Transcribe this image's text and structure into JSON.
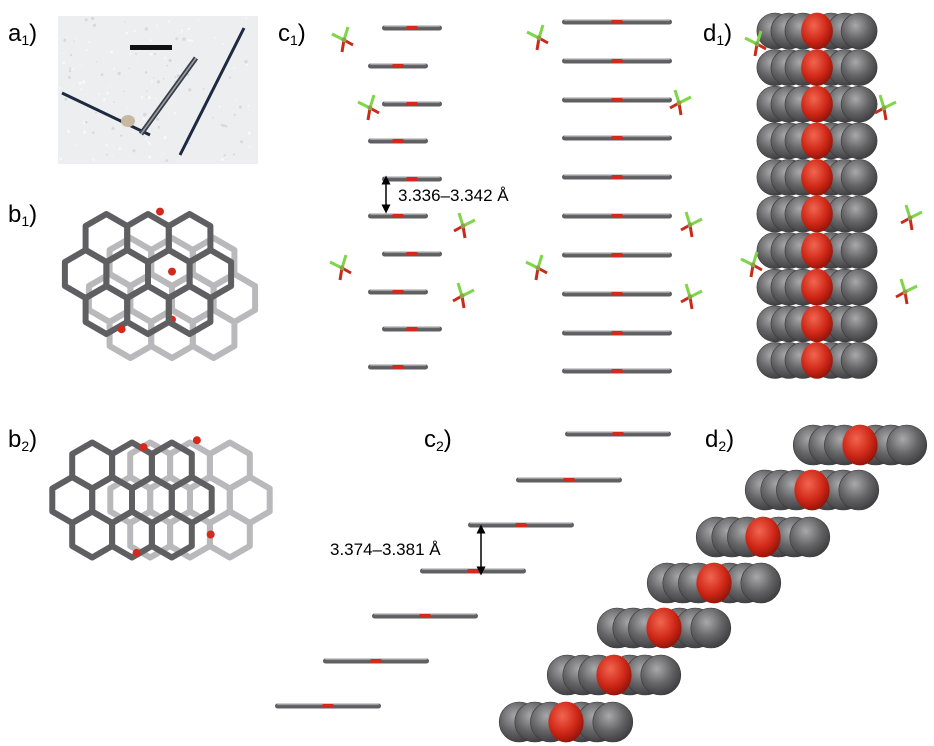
{
  "panels": {
    "a1": {
      "letter": "a",
      "sub": "1",
      "suffix": ")"
    },
    "b1": {
      "letter": "b",
      "sub": "1",
      "suffix": ")"
    },
    "b2": {
      "letter": "b",
      "sub": "2",
      "suffix": ")"
    },
    "c1": {
      "letter": "c",
      "sub": "1",
      "suffix": ")"
    },
    "c2": {
      "letter": "c",
      "sub": "2",
      "suffix": ")"
    },
    "d1": {
      "letter": "d",
      "sub": "1",
      "suffix": ")"
    },
    "d2": {
      "letter": "d",
      "sub": "2",
      "suffix": ")"
    }
  },
  "distances": {
    "c1": "3.336–3.342 Å",
    "c2": "3.374–3.381 Å"
  },
  "colors": {
    "carbon": "#5f5f61",
    "carbon_light": "#b9b9bb",
    "oxygen": "#d42a1e",
    "boron_fluorine": "#7fd64a",
    "counterion_center": "#c92a1a",
    "photo_bg": "#eceef0",
    "crystal": "#2b3342"
  }
}
